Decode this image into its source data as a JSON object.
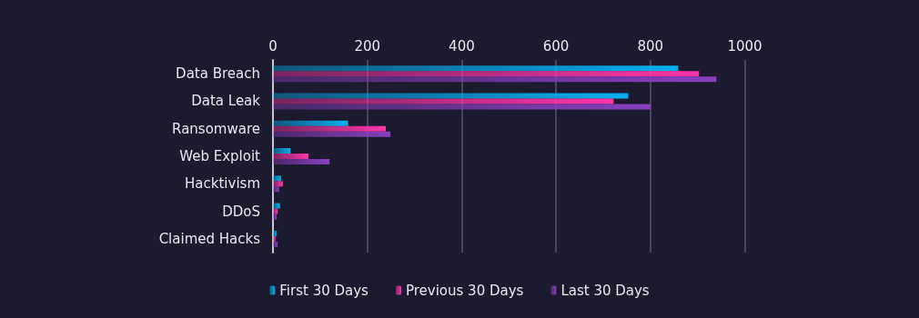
{
  "chart_data": {
    "type": "bar",
    "orientation": "horizontal",
    "categories": [
      "Data Breach",
      "Data Leak",
      "Ransomware",
      "Web Exploit",
      "Hacktivism",
      "DDoS",
      "Claimed Hacks"
    ],
    "series": [
      {
        "name": "First 30 Days",
        "color": "#00b0f0",
        "values": [
          859,
          753,
          159,
          37,
          17,
          15,
          8
        ]
      },
      {
        "name": "Previous 30 Days",
        "color": "#ff35a8",
        "values": [
          903,
          722,
          239,
          75,
          21,
          10,
          5
        ]
      },
      {
        "name": "Last 30 Days",
        "color": "#8a3fc0",
        "values": [
          940,
          800,
          249,
          120,
          13,
          8,
          10
        ]
      }
    ],
    "xlim": [
      0,
      1000
    ],
    "xticks": [
      0,
      200,
      400,
      600,
      800,
      1000
    ],
    "grid": "x",
    "legend": "bottom"
  }
}
